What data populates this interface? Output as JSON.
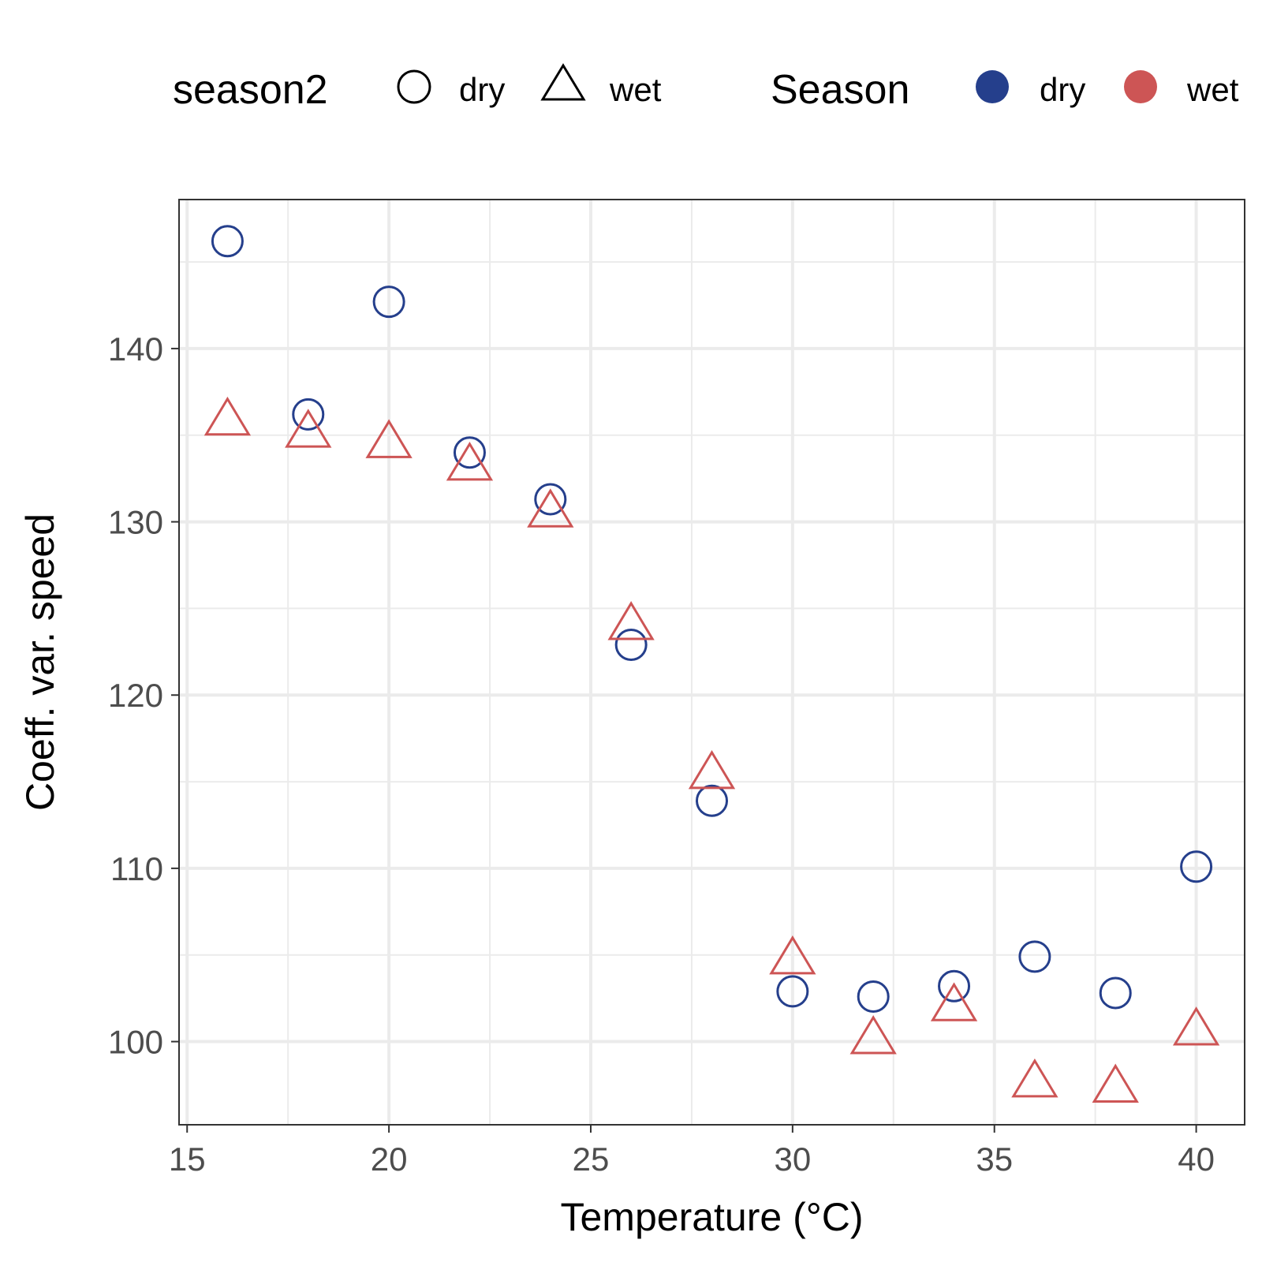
{
  "chart_data": {
    "type": "scatter",
    "xlabel": "Temperature (°C)",
    "ylabel": "Coeff. var. speed",
    "xlim": [
      14.8,
      41.2
    ],
    "ylim": [
      95.2,
      148.6
    ],
    "x_ticks": [
      15,
      20,
      25,
      30,
      35,
      40
    ],
    "y_ticks": [
      100,
      110,
      120,
      130,
      140
    ],
    "grid": true,
    "legend_position": "top",
    "legends": [
      {
        "title": "season2",
        "entries": [
          {
            "label": "dry",
            "shape": "circle"
          },
          {
            "label": "wet",
            "shape": "triangle"
          }
        ]
      },
      {
        "title": "Season",
        "entries": [
          {
            "label": "dry",
            "color": "#253F8C"
          },
          {
            "label": "wet",
            "color": "#CD5555"
          }
        ]
      }
    ],
    "series": [
      {
        "name": "dry",
        "shape": "circle",
        "color": "#253F8C",
        "points": [
          [
            16,
            146.2
          ],
          [
            18,
            136.2
          ],
          [
            20,
            142.7
          ],
          [
            22,
            134.0
          ],
          [
            24,
            131.3
          ],
          [
            26,
            122.9
          ],
          [
            28,
            113.9
          ],
          [
            30,
            102.9
          ],
          [
            32,
            102.6
          ],
          [
            34,
            103.2
          ],
          [
            36,
            104.9
          ],
          [
            38,
            102.8
          ],
          [
            40,
            110.1
          ]
        ]
      },
      {
        "name": "wet",
        "shape": "triangle",
        "color": "#CD5555",
        "points": [
          [
            16,
            136.0
          ],
          [
            18,
            135.3
          ],
          [
            20,
            134.7
          ],
          [
            22,
            133.4
          ],
          [
            24,
            130.7
          ],
          [
            26,
            124.2
          ],
          [
            28,
            115.6
          ],
          [
            30,
            104.9
          ],
          [
            32,
            100.3
          ],
          [
            34,
            102.2
          ],
          [
            36,
            97.8
          ],
          [
            38,
            97.5
          ],
          [
            40,
            100.8
          ]
        ]
      }
    ]
  }
}
